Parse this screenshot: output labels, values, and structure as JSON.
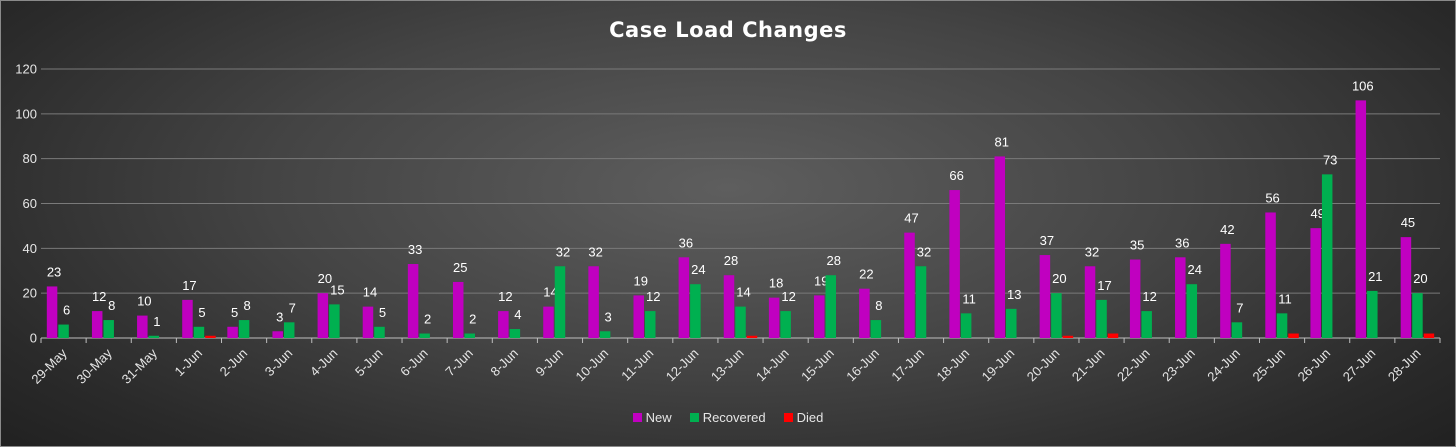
{
  "colors": {
    "new": "#c000c0",
    "recovered": "#00b050",
    "died": "#ff0000"
  },
  "chart_data": {
    "type": "bar",
    "title": "Case Load Changes",
    "xlabel": "",
    "ylabel": "",
    "ylim": [
      0,
      120
    ],
    "yticks": [
      0,
      20,
      40,
      60,
      80,
      100,
      120
    ],
    "grid": true,
    "legend_position": "bottom",
    "categories": [
      "29-May",
      "30-May",
      "31-May",
      "1-Jun",
      "2-Jun",
      "3-Jun",
      "4-Jun",
      "5-Jun",
      "6-Jun",
      "7-Jun",
      "8-Jun",
      "9-Jun",
      "10-Jun",
      "11-Jun",
      "12-Jun",
      "13-Jun",
      "14-Jun",
      "15-Jun",
      "16-Jun",
      "17-Jun",
      "18-Jun",
      "19-Jun",
      "20-Jun",
      "21-Jun",
      "22-Jun",
      "23-Jun",
      "24-Jun",
      "25-Jun",
      "26-Jun",
      "27-Jun",
      "28-Jun"
    ],
    "series": [
      {
        "name": "New",
        "values": [
          23,
          12,
          10,
          17,
          5,
          3,
          20,
          14,
          33,
          25,
          12,
          14,
          32,
          19,
          36,
          28,
          18,
          19,
          22,
          47,
          66,
          81,
          37,
          32,
          35,
          36,
          42,
          56,
          49,
          106,
          45
        ]
      },
      {
        "name": "Recovered",
        "values": [
          6,
          8,
          1,
          5,
          8,
          7,
          15,
          5,
          2,
          2,
          4,
          32,
          3,
          12,
          24,
          14,
          12,
          28,
          8,
          32,
          11,
          13,
          20,
          17,
          12,
          24,
          7,
          11,
          73,
          21,
          20
        ]
      },
      {
        "name": "Died",
        "values": [
          0,
          0,
          0,
          1,
          0,
          0,
          0,
          0,
          0,
          0,
          0,
          0,
          0,
          0,
          0,
          1,
          0,
          0,
          0,
          0,
          0,
          0,
          1,
          2,
          0,
          0,
          0,
          2,
          0,
          0,
          2
        ]
      }
    ]
  }
}
